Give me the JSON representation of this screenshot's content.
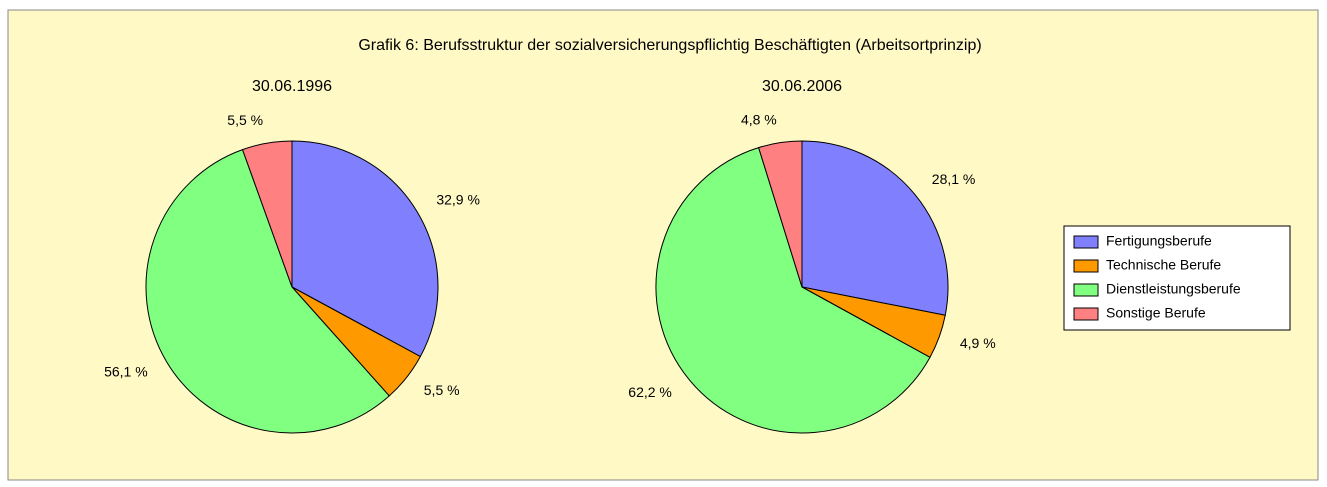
{
  "title": "Grafik 6: Berufsstruktur der sozialversicherungspflichtig Beschäftigten (Arbeitsortprinzip)",
  "chart_data": [
    {
      "type": "pie",
      "subtitle": "30.06.1996",
      "categories": [
        "Fertigungsberufe",
        "Technische Berufe",
        "Dienstleistungsberufe",
        "Sonstige Berufe"
      ],
      "values": [
        32.9,
        5.5,
        56.1,
        5.5
      ],
      "value_labels": [
        "32,9 %",
        "5,5 %",
        "56,1 %",
        "5,5 %"
      ],
      "colors": [
        "#8080ff",
        "#ff9900",
        "#80ff80",
        "#ff8080"
      ]
    },
    {
      "type": "pie",
      "subtitle": "30.06.2006",
      "categories": [
        "Fertigungsberufe",
        "Technische Berufe",
        "Dienstleistungsberufe",
        "Sonstige Berufe"
      ],
      "values": [
        28.1,
        4.9,
        62.2,
        4.8
      ],
      "value_labels": [
        "28,1 %",
        "4,9 %",
        "62,2 %",
        "4,8 %"
      ],
      "colors": [
        "#8080ff",
        "#ff9900",
        "#80ff80",
        "#ff8080"
      ]
    }
  ]
}
